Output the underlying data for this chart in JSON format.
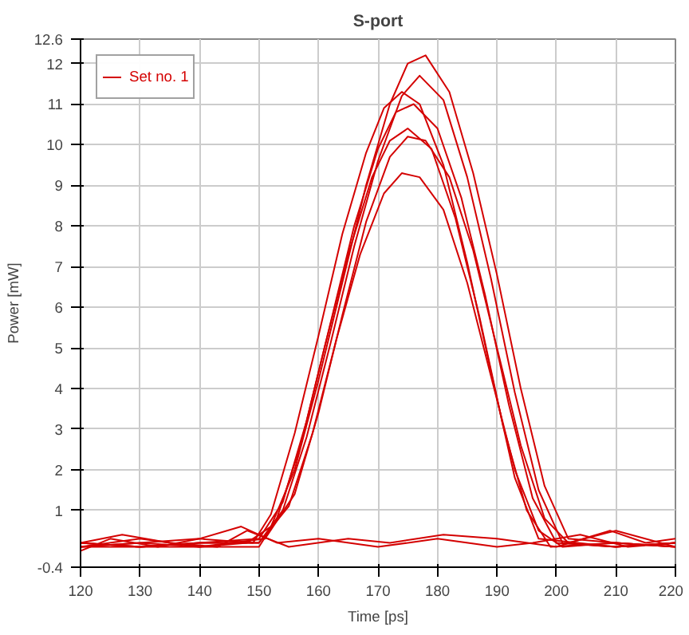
{
  "chart_data": {
    "type": "line",
    "title": "S-port",
    "xlabel": "Time [ps]",
    "ylabel": "Power [mW]",
    "xlim": [
      120,
      220
    ],
    "xticks": [
      120,
      130,
      140,
      150,
      160,
      170,
      180,
      190,
      200,
      210,
      220
    ],
    "ylim": [
      -0.4,
      12.6
    ],
    "yticks": [
      -0.4,
      1,
      2,
      3,
      4,
      5,
      6,
      7,
      8,
      9,
      10,
      11,
      12,
      12.6
    ],
    "grid": true,
    "legend": "top left",
    "line_style": "solid",
    "series": [
      {
        "name": "Set no. 1",
        "color": "#d40000",
        "x": [
          120,
          130,
          140,
          148,
          152,
          156,
          160,
          164,
          168,
          172,
          175,
          178,
          182,
          186,
          190,
          194,
          198,
          202,
          210,
          220
        ],
        "values": [
          0.1,
          0.2,
          0.1,
          0.2,
          0.6,
          2.0,
          4.2,
          6.6,
          9.0,
          11.0,
          12.0,
          12.2,
          11.3,
          9.3,
          6.8,
          4.0,
          1.6,
          0.3,
          0.2,
          0.1
        ]
      },
      {
        "color": "#d40000",
        "x": [
          120,
          130,
          140,
          150,
          154,
          158,
          162,
          166,
          170,
          173,
          176,
          180,
          184,
          188,
          192,
          196,
          200,
          210,
          220
        ],
        "values": [
          0.2,
          0.1,
          0.2,
          0.3,
          1.2,
          3.2,
          5.6,
          8.0,
          9.9,
          10.8,
          11.0,
          10.4,
          8.7,
          6.3,
          3.6,
          1.3,
          0.2,
          0.1,
          0.2
        ]
      },
      {
        "color": "#d40000",
        "x": [
          120,
          130,
          140,
          150,
          153,
          157,
          161,
          165,
          169,
          172,
          175,
          179,
          183,
          187,
          191,
          195,
          199,
          210,
          220
        ],
        "values": [
          0.1,
          0.3,
          0.1,
          0.1,
          0.8,
          2.6,
          5.0,
          7.3,
          9.2,
          10.1,
          10.4,
          9.9,
          8.2,
          5.8,
          3.1,
          1.0,
          0.1,
          0.2,
          0.1
        ]
      },
      {
        "color": "#d40000",
        "x": [
          120,
          130,
          140,
          150,
          155,
          159,
          163,
          167,
          171,
          174,
          177,
          181,
          185,
          189,
          193,
          197,
          201,
          210,
          220
        ],
        "values": [
          0.2,
          0.1,
          0.2,
          0.2,
          1.1,
          2.9,
          5.2,
          7.3,
          8.8,
          9.3,
          9.2,
          8.4,
          6.6,
          4.3,
          2.0,
          0.5,
          0.1,
          0.2,
          0.1
        ]
      },
      {
        "color": "#d40000",
        "x": [
          120,
          130,
          140,
          149,
          152,
          156,
          160,
          164,
          168,
          171,
          174,
          177,
          181,
          185,
          189,
          193,
          197,
          210,
          220
        ],
        "values": [
          0.1,
          0.2,
          0.3,
          0.2,
          0.9,
          2.9,
          5.3,
          7.8,
          9.8,
          10.9,
          11.3,
          11.0,
          9.5,
          7.1,
          4.4,
          1.8,
          0.3,
          0.1,
          0.2
        ]
      },
      {
        "color": "#d40000",
        "x": [
          120,
          130,
          140,
          151,
          156,
          160,
          164,
          168,
          172,
          175,
          178,
          182,
          186,
          190,
          194,
          198,
          202,
          210,
          220
        ],
        "values": [
          0.2,
          0.1,
          0.1,
          0.3,
          1.4,
          3.4,
          5.8,
          8.1,
          9.7,
          10.2,
          10.1,
          9.2,
          7.4,
          5.0,
          2.6,
          0.8,
          0.2,
          0.5,
          0.1
        ]
      },
      {
        "color": "#d40000",
        "x": [
          120,
          130,
          140,
          150,
          154,
          158,
          162,
          166,
          170,
          174,
          177,
          181,
          185,
          189,
          193,
          197,
          201,
          210,
          220
        ],
        "values": [
          0.1,
          0.1,
          0.2,
          0.2,
          1.0,
          2.8,
          5.1,
          7.5,
          9.6,
          11.2,
          11.7,
          11.1,
          9.2,
          6.7,
          3.9,
          1.5,
          0.2,
          0.1,
          0.2
        ]
      },
      {
        "color": "#d40000",
        "x": [
          120,
          127,
          135,
          143,
          148,
          155,
          165,
          172,
          181,
          190,
          200,
          209,
          215,
          220
        ],
        "values": [
          0.2,
          0.4,
          0.2,
          0.1,
          0.5,
          0.1,
          0.3,
          0.2,
          0.4,
          0.3,
          0.1,
          0.5,
          0.2,
          0.3
        ]
      },
      {
        "color": "#d40000",
        "x": [
          120,
          125,
          133,
          140,
          147,
          153,
          160,
          170,
          180,
          190,
          196,
          204,
          212,
          220
        ],
        "values": [
          0.0,
          0.3,
          0.1,
          0.3,
          0.6,
          0.2,
          0.3,
          0.1,
          0.3,
          0.1,
          0.2,
          0.4,
          0.1,
          0.2
        ]
      }
    ]
  }
}
